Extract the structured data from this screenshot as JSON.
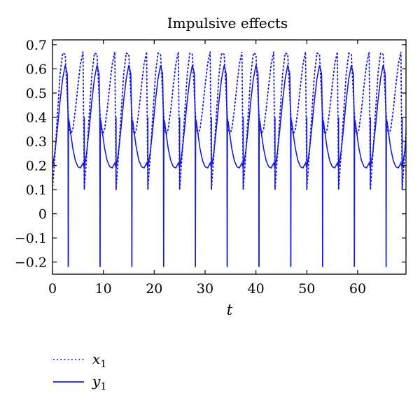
{
  "chart_data": {
    "type": "line",
    "title": "Impulsive effects",
    "xlabel": "t",
    "ylabel": "",
    "xlim": [
      0,
      69.5
    ],
    "ylim": [
      -0.25,
      0.72
    ],
    "xticks": [
      0,
      10,
      20,
      30,
      40,
      50,
      60
    ],
    "xtick_labels": [
      "0",
      "10",
      "20",
      "30",
      "40",
      "50",
      "60"
    ],
    "yticks": [
      0.7,
      0.6,
      0.5,
      0.4,
      0.3,
      0.2,
      0.1,
      0,
      -0.1,
      -0.2
    ],
    "ytick_labels": [
      "0.7",
      "0.6",
      "0.5",
      "0.4",
      "0.3",
      "0.2",
      "0.1",
      "0",
      "−0.1",
      "−0.2"
    ],
    "grid": false,
    "legend_position": "bottom-left, below plot",
    "period": 6.25,
    "series": [
      {
        "name": "x1",
        "legend_main": "x",
        "legend_sub": "1",
        "style": "dotted",
        "color": "#1a1adc",
        "x": [
          0,
          0.5,
          1.0,
          1.5,
          2.0,
          2.5,
          3.0,
          3.3,
          3.6,
          4.0,
          4.5,
          5.0,
          5.5,
          6.0,
          6.25
        ],
        "y": [
          0.1,
          0.25,
          0.42,
          0.58,
          0.665,
          0.66,
          0.45,
          0.35,
          0.33,
          0.35,
          0.43,
          0.53,
          0.62,
          0.67,
          0.66
        ],
        "repeats_every_period": true
      },
      {
        "name": "y1",
        "legend_main": "y",
        "legend_sub": "1",
        "style": "solid",
        "color": "#1a1adc",
        "x": [
          0,
          0.5,
          1.0,
          1.5,
          2.0,
          2.5,
          2.9,
          3.05,
          3.1,
          3.15,
          3.3,
          3.6,
          4.0,
          4.5,
          5.0,
          5.5,
          6.0,
          6.25
        ],
        "y": [
          0.19,
          0.26,
          0.36,
          0.47,
          0.56,
          0.615,
          0.58,
          0.4,
          -0.22,
          0.39,
          0.38,
          0.33,
          0.27,
          0.22,
          0.195,
          0.19,
          0.21,
          0.23
        ],
        "spikes": [
          {
            "x": 3.1,
            "low": -0.22,
            "high": 0.4
          },
          {
            "x": 6.25,
            "low": 0.1,
            "high": 0.4
          }
        ],
        "repeats_every_period": true
      }
    ]
  }
}
